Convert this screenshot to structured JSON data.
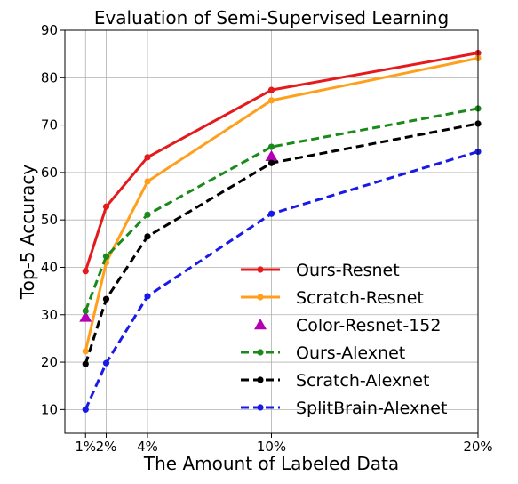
{
  "chart_data": {
    "type": "line",
    "title": "Evaluation of Semi-Supervised Learning",
    "xlabel": "The Amount of Labeled Data",
    "ylabel": "Top-5 Accuracy",
    "x": [
      1,
      2,
      4,
      10,
      20
    ],
    "x_tick_labels": [
      "1%",
      "2%",
      "4%",
      "10%",
      "20%"
    ],
    "xlim": [
      0,
      20
    ],
    "ylim": [
      5,
      90
    ],
    "y_ticks": [
      10,
      20,
      30,
      40,
      50,
      60,
      70,
      80,
      90
    ],
    "grid": true,
    "legend_position": "lower-right",
    "series": [
      {
        "name": "Ours-Resnet",
        "color": "#e41a1c",
        "style": "solid",
        "marker": "circle",
        "x": [
          1,
          2,
          4,
          10,
          20
        ],
        "values": [
          39.2,
          52.8,
          63.2,
          77.4,
          85.2
        ]
      },
      {
        "name": "Scratch-Resnet",
        "color": "#ff9f1c",
        "style": "solid",
        "marker": "circle",
        "x": [
          1,
          2,
          4,
          10,
          20
        ],
        "values": [
          22.3,
          41.0,
          58.1,
          75.2,
          84.1
        ]
      },
      {
        "name": "Color-Resnet-152",
        "color": "#b400b4",
        "style": "none",
        "marker": "triangle",
        "x": [
          1,
          10
        ],
        "values": [
          29.5,
          63.4
        ]
      },
      {
        "name": "Ours-Alexnet",
        "color": "#1a8a1a",
        "style": "dashed",
        "marker": "circle",
        "x": [
          1,
          2,
          4,
          10,
          20
        ],
        "values": [
          30.8,
          42.3,
          51.1,
          65.4,
          73.5
        ]
      },
      {
        "name": "Scratch-Alexnet",
        "color": "#000000",
        "style": "dashed",
        "marker": "circle",
        "x": [
          1,
          2,
          4,
          10,
          20
        ],
        "values": [
          19.6,
          33.3,
          46.5,
          62.0,
          70.3
        ]
      },
      {
        "name": "SplitBrain-Alexnet",
        "color": "#1a1ae6",
        "style": "dashed",
        "marker": "circle",
        "x": [
          1,
          2,
          4,
          10,
          20
        ],
        "values": [
          10.0,
          19.8,
          33.9,
          51.3,
          64.4
        ]
      }
    ]
  }
}
